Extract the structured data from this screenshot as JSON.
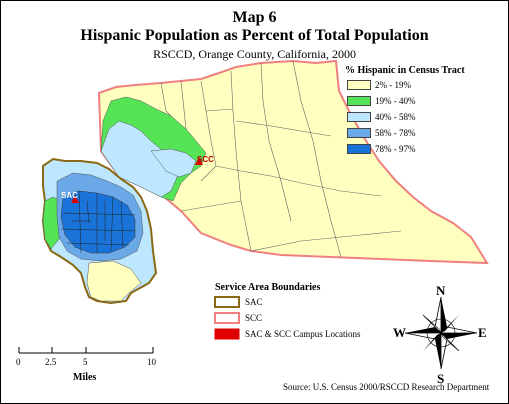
{
  "title": {
    "map_number": "Map 6",
    "main": "Hispanic Population as Percent of Total Population",
    "subtitle": "RSCCD, Orange County, California, 2000"
  },
  "legend": {
    "title": "% Hispanic in Census Tract",
    "classes": [
      {
        "label": "2% - 19%",
        "color": "#ffffc0"
      },
      {
        "label": "19% - 40%",
        "color": "#55e455"
      },
      {
        "label": "40% - 58%",
        "color": "#bde6ff"
      },
      {
        "label": "58% - 78%",
        "color": "#6aa8e8"
      },
      {
        "label": "78% - 97%",
        "color": "#1a73d8"
      }
    ]
  },
  "boundaries": {
    "title": "Service Area Boundaries",
    "items": [
      {
        "label": "SAC",
        "color": "#8b6914"
      },
      {
        "label": "SCC",
        "color": "#f08080"
      },
      {
        "label": "SAC & SCC Campus Locations",
        "color": "#e00000"
      }
    ]
  },
  "campuses": {
    "sac": "SAC",
    "scc": "SCC"
  },
  "scale": {
    "ticks": [
      "0",
      "2.5",
      "5",
      "10"
    ],
    "unit": "Miles"
  },
  "compass": {
    "n": "N",
    "s": "S",
    "e": "E",
    "w": "W"
  },
  "source": "Source: U.S. Census 2000/RSCCD Research Department"
}
